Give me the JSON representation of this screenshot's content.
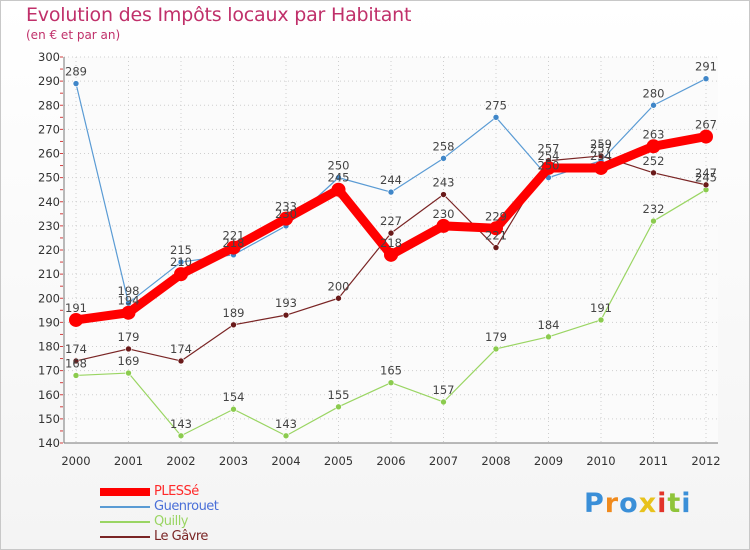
{
  "chart_data": {
    "type": "line",
    "title": "Evolution des Impôts locaux par Habitant",
    "subtitle": "(en € et par an)",
    "xlabel": "",
    "ylabel": "",
    "x": [
      "2000",
      "2001",
      "2002",
      "2003",
      "2004",
      "2005",
      "2006",
      "2007",
      "2008",
      "2009",
      "2010",
      "2011",
      "2012"
    ],
    "ylim": [
      140,
      300
    ],
    "yticks": [
      140,
      150,
      160,
      170,
      180,
      190,
      200,
      210,
      220,
      230,
      240,
      250,
      260,
      270,
      280,
      290,
      300
    ],
    "grid": true,
    "legend_position": "bottom-left",
    "series": [
      {
        "name": "PLESSé",
        "color": "#ff0000",
        "marker": "#ff0000",
        "emphasis": true,
        "values": [
          191,
          194,
          210,
          221,
          233,
          245,
          218,
          230,
          229,
          254,
          254,
          263,
          267
        ]
      },
      {
        "name": "Guenrouet",
        "color": "#5a9bd4",
        "marker": "#3f86c8",
        "emphasis": false,
        "values": [
          289,
          198,
          215,
          218,
          230,
          250,
          244,
          258,
          275,
          250,
          257,
          280,
          291
        ]
      },
      {
        "name": "Quilly",
        "color": "#9ad563",
        "marker": "#8bcb4e",
        "emphasis": false,
        "values": [
          168,
          169,
          143,
          154,
          143,
          155,
          165,
          157,
          179,
          184,
          191,
          232,
          245
        ]
      },
      {
        "name": "Le Gâvre",
        "color": "#7a2525",
        "marker": "#6a1a1a",
        "emphasis": false,
        "values": [
          174,
          179,
          174,
          189,
          193,
          200,
          227,
          243,
          221,
          257,
          259,
          252,
          247
        ]
      }
    ]
  },
  "logo": {
    "text": "Proxiti",
    "letters": [
      "P",
      "r",
      "o",
      "x",
      "i",
      "t",
      "i"
    ],
    "colors": [
      "#3a8fd8",
      "#f08a1c",
      "#3a8fd8",
      "#e8c21c",
      "#e2342a",
      "#8fc43a",
      "#3a8fd8"
    ]
  }
}
